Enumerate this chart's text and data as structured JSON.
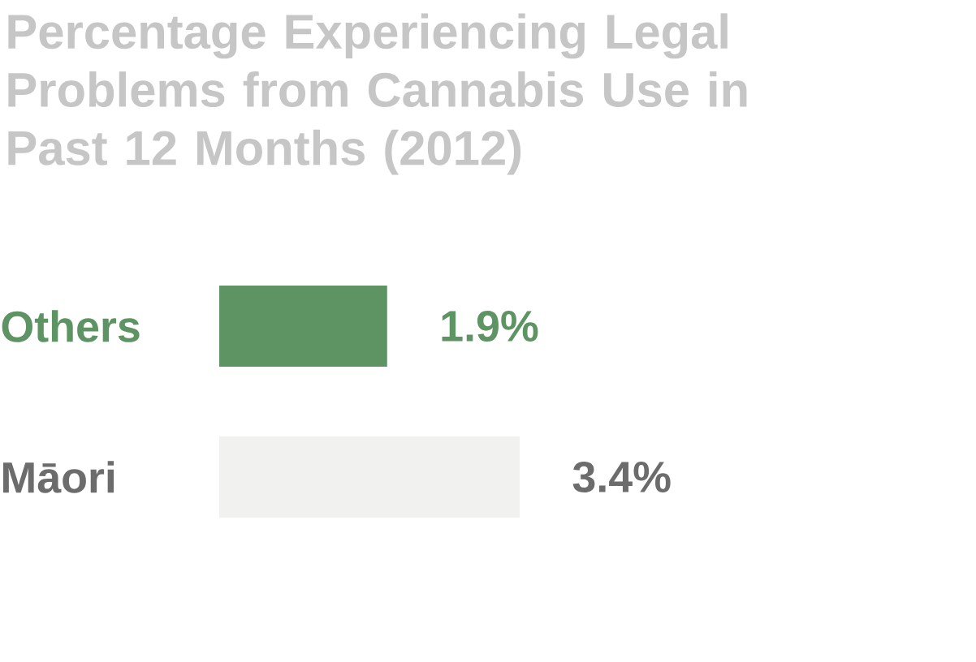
{
  "chart_data": {
    "type": "bar",
    "orientation": "horizontal",
    "title": "Percentage Experiencing Legal Problems from Cannabis Use in Past 12 Months (2012)",
    "categories": [
      "Others",
      "Māori"
    ],
    "values": [
      1.9,
      3.4
    ],
    "colors": [
      "#5e9363",
      "#f1f1ef"
    ],
    "value_labels": [
      "1.9%",
      "3.4%"
    ]
  }
}
